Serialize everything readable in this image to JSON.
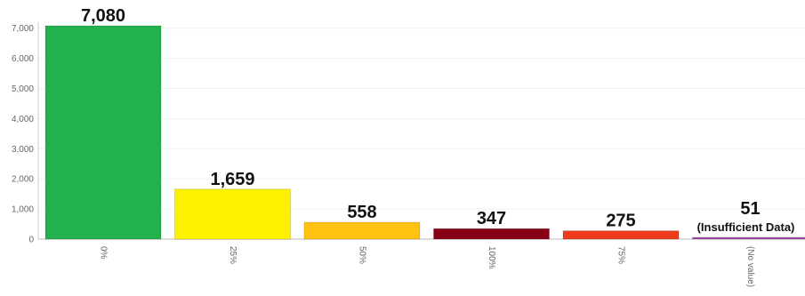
{
  "chart_data": {
    "type": "bar",
    "title": "",
    "xlabel": "",
    "ylabel": "",
    "ylim": [
      0,
      7080
    ],
    "yticks": [
      0,
      1000,
      2000,
      3000,
      4000,
      5000,
      6000,
      7000
    ],
    "ytick_labels": [
      "0",
      "1,000",
      "2,000",
      "3,000",
      "4,000",
      "5,000",
      "6,000",
      "7,000"
    ],
    "grid": true,
    "legend": "none",
    "categories": [
      "0%",
      "25%",
      "50%",
      "100%",
      "75%",
      "(No value)"
    ],
    "values": [
      7080,
      1659,
      558,
      347,
      275,
      51
    ],
    "data_labels": [
      "7,080",
      "1,659",
      "558",
      "347",
      "275",
      "51"
    ],
    "data_sublabels": [
      "",
      "",
      "",
      "",
      "",
      "(Insufficient Data)"
    ],
    "colors": [
      "#22b14c",
      "#fff200",
      "#ffc20e",
      "#880015",
      "#ed3b1c",
      "#a349a4"
    ]
  }
}
